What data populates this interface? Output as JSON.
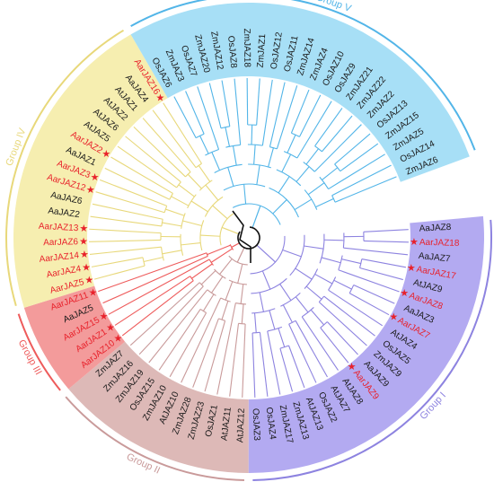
{
  "colors": {
    "group1": "#8d83e0",
    "group2": "#c99a9a",
    "group3": "#ee5b5b",
    "group4": "#e8d87a",
    "group5": "#52b5e8",
    "group1_bg": "#b3aaf1",
    "group2_bg": "#ddb9b7",
    "group3_bg": "#f39b9b",
    "group4_bg": "#f6eeb0",
    "group5_bg": "#a7dff6",
    "highlight_text": "#e8212b",
    "normal_text": "#1a1a1a",
    "star": "#e8212b",
    "root_branch": "#111111"
  },
  "groups": [
    {
      "id": "group1",
      "label": "Group I"
    },
    {
      "id": "group2",
      "label": "Group II"
    },
    {
      "id": "group3",
      "label": "Group III"
    },
    {
      "id": "group4",
      "label": "Group IV"
    },
    {
      "id": "group5",
      "label": "Group V"
    }
  ],
  "leaves": [
    {
      "label": "AaJAZ8",
      "group": "group1",
      "highlight": false
    },
    {
      "label": "AarJAZ18",
      "group": "group1",
      "highlight": true
    },
    {
      "label": "AaJAZ7",
      "group": "group1",
      "highlight": false
    },
    {
      "label": "AarJAZ17",
      "group": "group1",
      "highlight": true
    },
    {
      "label": "AtJAZ9",
      "group": "group1",
      "highlight": false
    },
    {
      "label": "AarJAZ8",
      "group": "group1",
      "highlight": true
    },
    {
      "label": "AaJAZ3",
      "group": "group1",
      "highlight": false
    },
    {
      "label": "AarJAZ7",
      "group": "group1",
      "highlight": true
    },
    {
      "label": "AtJAZ4",
      "group": "group1",
      "highlight": false
    },
    {
      "label": "OsJAZ5",
      "group": "group1",
      "highlight": false
    },
    {
      "label": "ZmJAZ9",
      "group": "group1",
      "highlight": false
    },
    {
      "label": "AaJAZ9",
      "group": "group1",
      "highlight": false
    },
    {
      "label": "AarJAZ9",
      "group": "group1",
      "highlight": true
    },
    {
      "label": "AtJAZ8",
      "group": "group1",
      "highlight": false
    },
    {
      "label": "AtJAZ7",
      "group": "group1",
      "highlight": false
    },
    {
      "label": "OsJAZ2",
      "group": "group1",
      "highlight": false
    },
    {
      "label": "AtJAZ13",
      "group": "group1",
      "highlight": false
    },
    {
      "label": "ZmJAZ13",
      "group": "group1",
      "highlight": false
    },
    {
      "label": "ZmJAZ17",
      "group": "group1",
      "highlight": false
    },
    {
      "label": "OsJAZ4",
      "group": "group1",
      "highlight": false
    },
    {
      "label": "OsJAZ3",
      "group": "group1",
      "highlight": false
    },
    {
      "label": "AtJAZ12",
      "group": "group2",
      "highlight": false
    },
    {
      "label": "AtJAZ11",
      "group": "group2",
      "highlight": false
    },
    {
      "label": "OsJAZ1",
      "group": "group2",
      "highlight": false
    },
    {
      "label": "ZmJAZ23",
      "group": "group2",
      "highlight": false
    },
    {
      "label": "ZmJAZ28",
      "group": "group2",
      "highlight": false
    },
    {
      "label": "AtJAZ10",
      "group": "group2",
      "highlight": false
    },
    {
      "label": "ZmJAZ10",
      "group": "group2",
      "highlight": false
    },
    {
      "label": "OsJAZ15",
      "group": "group2",
      "highlight": false
    },
    {
      "label": "ZmJAZ19",
      "group": "group2",
      "highlight": false
    },
    {
      "label": "ZmJAZ16",
      "group": "group2",
      "highlight": false
    },
    {
      "label": "ZmJAZ7",
      "group": "group2",
      "highlight": false
    },
    {
      "label": "AarJAZ10",
      "group": "group3",
      "highlight": true
    },
    {
      "label": "AarJAZ1",
      "group": "group3",
      "highlight": true
    },
    {
      "label": "AarJAZ15",
      "group": "group3",
      "highlight": true
    },
    {
      "label": "AaJAZ5",
      "group": "group3",
      "highlight": false
    },
    {
      "label": "AarJAZ11",
      "group": "group3",
      "highlight": true
    },
    {
      "label": "AarJAZ5",
      "group": "group4",
      "highlight": true
    },
    {
      "label": "AarJAZ4",
      "group": "group4",
      "highlight": true
    },
    {
      "label": "AarJAZ14",
      "group": "group4",
      "highlight": true
    },
    {
      "label": "AarJAZ6",
      "group": "group4",
      "highlight": true
    },
    {
      "label": "AarJAZ13",
      "group": "group4",
      "highlight": true
    },
    {
      "label": "AaJAZ2",
      "group": "group4",
      "highlight": false
    },
    {
      "label": "AaJAZ6",
      "group": "group4",
      "highlight": false
    },
    {
      "label": "AarJAZ12",
      "group": "group4",
      "highlight": true
    },
    {
      "label": "AarJAZ3",
      "group": "group4",
      "highlight": true
    },
    {
      "label": "AaJAZ1",
      "group": "group4",
      "highlight": false
    },
    {
      "label": "AarJAZ2",
      "group": "group4",
      "highlight": true
    },
    {
      "label": "AtJAZ5",
      "group": "group4",
      "highlight": false
    },
    {
      "label": "AtJAZ6",
      "group": "group4",
      "highlight": false
    },
    {
      "label": "AtJAZ2",
      "group": "group4",
      "highlight": false
    },
    {
      "label": "AtJAZ1",
      "group": "group4",
      "highlight": false
    },
    {
      "label": "AaJAZ4",
      "group": "group4",
      "highlight": false
    },
    {
      "label": "AarJAZ16",
      "group": "group4",
      "highlight": true
    },
    {
      "label": "OsJAZ6",
      "group": "group5",
      "highlight": false
    },
    {
      "label": "ZmJAZ3",
      "group": "group5",
      "highlight": false
    },
    {
      "label": "OsJAZ7",
      "group": "group5",
      "highlight": false
    },
    {
      "label": "ZmJAZ20",
      "group": "group5",
      "highlight": false
    },
    {
      "label": "ZmJAZ12",
      "group": "group5",
      "highlight": false
    },
    {
      "label": "OsJAZ8",
      "group": "group5",
      "highlight": false
    },
    {
      "label": "ZmJAZ18",
      "group": "group5",
      "highlight": false
    },
    {
      "label": "ZmJAZ1",
      "group": "group5",
      "highlight": false
    },
    {
      "label": "OsJAZ12",
      "group": "group5",
      "highlight": false
    },
    {
      "label": "OsJAZ11",
      "group": "group5",
      "highlight": false
    },
    {
      "label": "ZmJAZ14",
      "group": "group5",
      "highlight": false
    },
    {
      "label": "ZmJAZ4",
      "group": "group5",
      "highlight": false
    },
    {
      "label": "OsJAZ10",
      "group": "group5",
      "highlight": false
    },
    {
      "label": "OsJAZ9",
      "group": "group5",
      "highlight": false
    },
    {
      "label": "ZmJAZ21",
      "group": "group5",
      "highlight": false
    },
    {
      "label": "ZmJAZ22",
      "group": "group5",
      "highlight": false
    },
    {
      "label": "ZmJAZ2",
      "group": "group5",
      "highlight": false
    },
    {
      "label": "OsJAZ13",
      "group": "group5",
      "highlight": false
    },
    {
      "label": "ZmJAZ15",
      "group": "group5",
      "highlight": false
    },
    {
      "label": "ZmJAZ5",
      "group": "group5",
      "highlight": false
    },
    {
      "label": "OsJAZ14",
      "group": "group5",
      "highlight": false
    },
    {
      "label": "ZmJAZ6",
      "group": "group5",
      "highlight": false
    }
  ]
}
